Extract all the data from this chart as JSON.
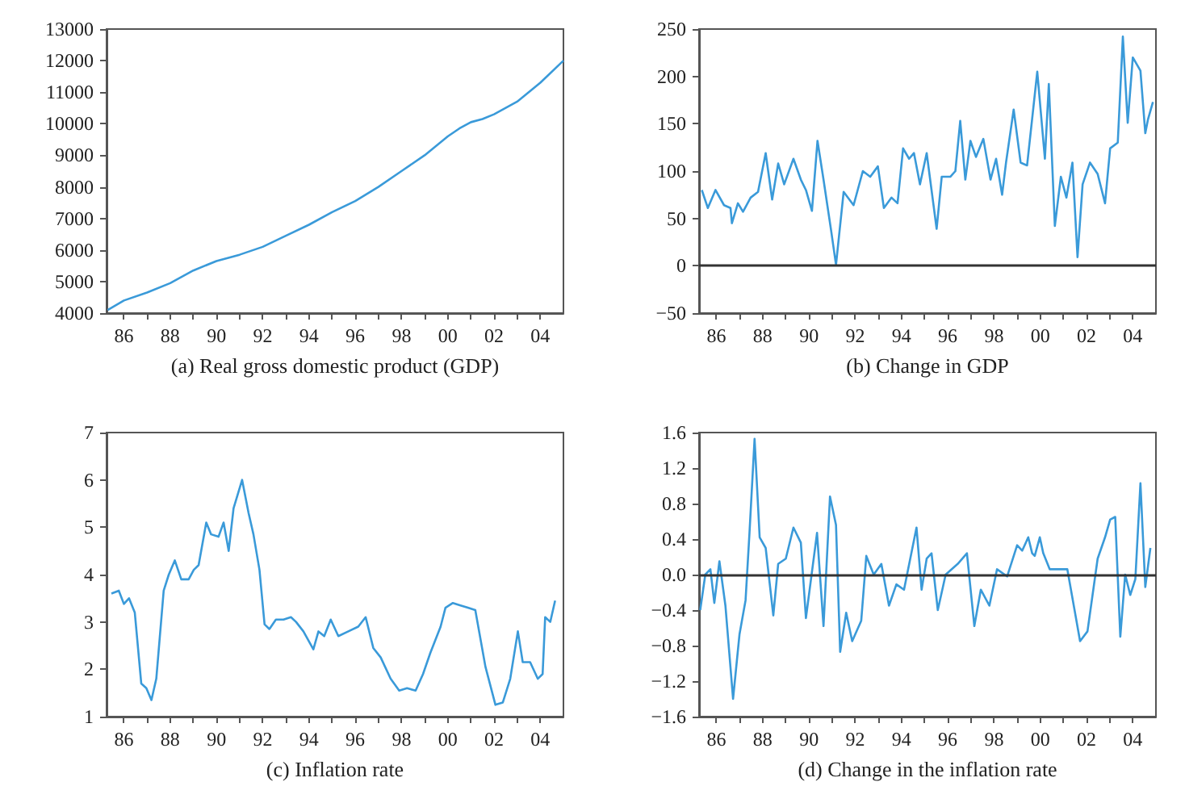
{
  "chart_data": [
    {
      "type": "line",
      "xlabel": "(a) Real gross domestic product (GDP)",
      "xlim": [
        1985.25,
        2005
      ],
      "ylim": [
        4000,
        13000
      ],
      "yticks": [
        4000,
        5000,
        6000,
        7000,
        8000,
        9000,
        10000,
        11000,
        12000,
        13000
      ],
      "xticks": [
        {
          "value": 1986,
          "label": "86"
        },
        {
          "value": 1987,
          "label": null
        },
        {
          "value": 1988,
          "label": "88"
        },
        {
          "value": 1989,
          "label": null
        },
        {
          "value": 1990,
          "label": "90"
        },
        {
          "value": 1991,
          "label": null
        },
        {
          "value": 1992,
          "label": "92"
        },
        {
          "value": 1993,
          "label": null
        },
        {
          "value": 1994,
          "label": "94"
        },
        {
          "value": 1995,
          "label": null
        },
        {
          "value": 1996,
          "label": "96"
        },
        {
          "value": 1997,
          "label": null
        },
        {
          "value": 1998,
          "label": "98"
        },
        {
          "value": 1999,
          "label": null
        },
        {
          "value": 2000,
          "label": "00"
        },
        {
          "value": 2001,
          "label": null
        },
        {
          "value": 2002,
          "label": "02"
        },
        {
          "value": 2003,
          "label": null
        },
        {
          "value": 2004,
          "label": "04"
        }
      ],
      "grid": false,
      "marker": "none",
      "series": [
        {
          "color": "#3a9ad9",
          "x": [
            1985.3,
            1986,
            1987,
            1988,
            1989,
            1990,
            1991,
            1992,
            1993,
            1994,
            1995,
            1996,
            1997,
            1998,
            1999,
            2000,
            2000.5,
            2001,
            2001.5,
            2002,
            2003,
            2004,
            2005
          ],
          "values": [
            4100,
            4400,
            4650,
            4950,
            5350,
            5650,
            5850,
            6100,
            6450,
            6800,
            7200,
            7550,
            8000,
            8500,
            9000,
            9600,
            9850,
            10050,
            10150,
            10300,
            10700,
            11300,
            12000
          ]
        }
      ]
    },
    {
      "type": "line",
      "xlabel": "(b) Change in GDP",
      "xlim": [
        1985.25,
        2005
      ],
      "ylim": [
        -50,
        250
      ],
      "yticks": [
        {
          "value": -50,
          "label": "−50"
        },
        0,
        50,
        100,
        150,
        200,
        250
      ],
      "xticks": [
        {
          "value": 1986,
          "label": "86"
        },
        {
          "value": 1987,
          "label": null
        },
        {
          "value": 1988,
          "label": "88"
        },
        {
          "value": 1989,
          "label": null
        },
        {
          "value": 1990,
          "label": "90"
        },
        {
          "value": 1991,
          "label": null
        },
        {
          "value": 1992,
          "label": "92"
        },
        {
          "value": 1993,
          "label": null
        },
        {
          "value": 1994,
          "label": "94"
        },
        {
          "value": 1995,
          "label": null
        },
        {
          "value": 1996,
          "label": "96"
        },
        {
          "value": 1997,
          "label": null
        },
        {
          "value": 1998,
          "label": "98"
        },
        {
          "value": 1999,
          "label": null
        },
        {
          "value": 2000,
          "label": "00"
        },
        {
          "value": 2001,
          "label": null
        },
        {
          "value": 2002,
          "label": "02"
        },
        {
          "value": 2003,
          "label": null
        },
        {
          "value": 2004,
          "label": "04"
        }
      ],
      "grid": false,
      "marker": "none",
      "ref_lines": [
        {
          "axis": "y",
          "value": 0,
          "color": "#333333"
        }
      ],
      "series": [
        {
          "color": "#3a9ad9",
          "x": [
            1985.37,
            1985.63,
            1985.96,
            1986.33,
            1986.61,
            1986.67,
            1986.93,
            1987.15,
            1987.48,
            1987.8,
            1988.13,
            1988.41,
            1988.67,
            1988.93,
            1989.33,
            1989.65,
            1989.87,
            1990.13,
            1990.37,
            1990.63,
            1990.96,
            1991.17,
            1991.5,
            1991.93,
            1992.33,
            1992.65,
            1992.98,
            1993.24,
            1993.57,
            1993.83,
            1994.07,
            1994.33,
            1994.54,
            1994.8,
            1995.09,
            1995.52,
            1995.74,
            1996.11,
            1996.33,
            1996.54,
            1996.76,
            1996.98,
            1997.22,
            1997.54,
            1997.85,
            1998.09,
            1998.35,
            1998.52,
            1998.85,
            1999.15,
            1999.43,
            1999.87,
            2000.2,
            2000.37,
            2000.63,
            2000.89,
            2001.13,
            2001.39,
            2001.61,
            2001.83,
            2002.15,
            2002.48,
            2002.8,
            2003.02,
            2003.35,
            2003.57,
            2003.78,
            2004,
            2004.33,
            2004.54,
            2004.65,
            2004.87
          ],
          "values": [
            80,
            61,
            80,
            64,
            61,
            45,
            66,
            57,
            72,
            78,
            119,
            70,
            108,
            86,
            113,
            91,
            80,
            58,
            132,
            91,
            37,
            1,
            78,
            64,
            100,
            94,
            105,
            61,
            72,
            66,
            124,
            113,
            119,
            86,
            119,
            39,
            94,
            94,
            100,
            153,
            91,
            132,
            115,
            134,
            91,
            113,
            75,
            109,
            165,
            109,
            106,
            205,
            113,
            192,
            42,
            94,
            72,
            109,
            9,
            86,
            109,
            97,
            66,
            124,
            130,
            242,
            151,
            220,
            206,
            140,
            154,
            173
          ]
        }
      ]
    },
    {
      "type": "line",
      "xlabel": "(c) Inflation rate",
      "xlim": [
        1985.25,
        2005
      ],
      "ylim": [
        1,
        7
      ],
      "yticks": [
        1,
        2,
        3,
        4,
        5,
        6,
        7
      ],
      "xticks": [
        {
          "value": 1986,
          "label": "86"
        },
        {
          "value": 1987,
          "label": null
        },
        {
          "value": 1988,
          "label": "88"
        },
        {
          "value": 1989,
          "label": null
        },
        {
          "value": 1990,
          "label": "90"
        },
        {
          "value": 1991,
          "label": null
        },
        {
          "value": 1992,
          "label": "92"
        },
        {
          "value": 1993,
          "label": null
        },
        {
          "value": 1994,
          "label": "94"
        },
        {
          "value": 1995,
          "label": null
        },
        {
          "value": 1996,
          "label": "96"
        },
        {
          "value": 1997,
          "label": null
        },
        {
          "value": 1998,
          "label": "98"
        },
        {
          "value": 1999,
          "label": null
        },
        {
          "value": 2000,
          "label": "00"
        },
        {
          "value": 2001,
          "label": null
        },
        {
          "value": 2002,
          "label": "02"
        },
        {
          "value": 2003,
          "label": null
        },
        {
          "value": 2004,
          "label": "04"
        }
      ],
      "grid": false,
      "marker": "none",
      "series": [
        {
          "color": "#3a9ad9",
          "x": [
            1985.46,
            1985.78,
            1986,
            1986.22,
            1986.47,
            1986.75,
            1986.97,
            1987.19,
            1987.4,
            1987.72,
            1987.94,
            1988.2,
            1988.48,
            1988.8,
            1989.02,
            1989.23,
            1989.56,
            1989.77,
            1990.09,
            1990.31,
            1990.53,
            1990.74,
            1991.11,
            1991.39,
            1991.6,
            1991.86,
            1992.08,
            1992.29,
            1992.57,
            1992.9,
            1993.22,
            1993.44,
            1993.76,
            1994.19,
            1994.41,
            1994.66,
            1994.94,
            1995.27,
            1995.7,
            1996.13,
            1996.45,
            1996.78,
            1997.1,
            1997.53,
            1997.9,
            1998.24,
            1998.61,
            1998.93,
            1999.25,
            1999.69,
            1999.9,
            2000.22,
            2000.55,
            2000.87,
            2001.19,
            2001.63,
            2002.06,
            2002.38,
            2002.7,
            2003.03,
            2003.24,
            2003.56,
            2003.89,
            2004.1,
            2004.21,
            2004.43,
            2004.64
          ],
          "values": [
            3.6,
            3.66,
            3.38,
            3.5,
            3.2,
            1.7,
            1.6,
            1.35,
            1.8,
            3.66,
            4.0,
            4.3,
            3.9,
            3.9,
            4.1,
            4.2,
            5.1,
            4.85,
            4.8,
            5.1,
            4.5,
            5.4,
            6.0,
            5.3,
            4.85,
            4.1,
            2.95,
            2.85,
            3.05,
            3.05,
            3.1,
            3.0,
            2.8,
            2.42,
            2.8,
            2.7,
            3.05,
            2.7,
            2.8,
            2.9,
            3.1,
            2.45,
            2.25,
            1.8,
            1.55,
            1.6,
            1.55,
            1.9,
            2.35,
            2.9,
            3.3,
            3.4,
            3.35,
            3.3,
            3.25,
            2.05,
            1.25,
            1.3,
            1.8,
            2.8,
            2.15,
            2.15,
            1.8,
            1.9,
            3.1,
            3.0,
            3.45
          ]
        }
      ]
    },
    {
      "type": "line",
      "xlabel": "(d) Change in the inflation rate",
      "xlim": [
        1985.25,
        2005
      ],
      "ylim": [
        -1.6,
        1.6
      ],
      "yticks": [
        {
          "value": -1.6,
          "label": "−1.6"
        },
        {
          "value": -1.2,
          "label": "−1.2"
        },
        {
          "value": -0.8,
          "label": "−0.8"
        },
        {
          "value": -0.4,
          "label": "−0.4"
        },
        {
          "value": 0,
          "label": "0.0"
        },
        0.4,
        0.8,
        1.2,
        1.6
      ],
      "xticks": [
        {
          "value": 1986,
          "label": "86"
        },
        {
          "value": 1987,
          "label": null
        },
        {
          "value": 1988,
          "label": "88"
        },
        {
          "value": 1989,
          "label": null
        },
        {
          "value": 1990,
          "label": "90"
        },
        {
          "value": 1991,
          "label": null
        },
        {
          "value": 1992,
          "label": "92"
        },
        {
          "value": 1993,
          "label": null
        },
        {
          "value": 1994,
          "label": "94"
        },
        {
          "value": 1995,
          "label": null
        },
        {
          "value": 1996,
          "label": "96"
        },
        {
          "value": 1997,
          "label": null
        },
        {
          "value": 1998,
          "label": "98"
        },
        {
          "value": 1999,
          "label": null
        },
        {
          "value": 2000,
          "label": "00"
        },
        {
          "value": 2001,
          "label": null
        },
        {
          "value": 2002,
          "label": "02"
        },
        {
          "value": 2003,
          "label": null
        },
        {
          "value": 2004,
          "label": "04"
        }
      ],
      "grid": false,
      "marker": "none",
      "ref_lines": [
        {
          "axis": "y",
          "value": 0,
          "color": "#333333"
        }
      ],
      "series": [
        {
          "color": "#3a9ad9",
          "x": [
            1985.3,
            1985.52,
            1985.74,
            1985.91,
            1986.13,
            1986.39,
            1986.72,
            1987,
            1987.26,
            1987.43,
            1987.65,
            1987.87,
            1988.13,
            1988.46,
            1988.67,
            1989,
            1989.33,
            1989.65,
            1989.87,
            1990.35,
            1990.63,
            1990.91,
            1991.17,
            1991.35,
            1991.61,
            1991.87,
            1992.26,
            1992.48,
            1992.8,
            1993.13,
            1993.46,
            1993.78,
            1994.11,
            1994.65,
            1994.87,
            1995.09,
            1995.3,
            1995.57,
            1995.91,
            1996.43,
            1996.83,
            1997.15,
            1997.43,
            1997.8,
            1998.13,
            1998.57,
            1999,
            1999.22,
            1999.48,
            1999.65,
            1999.76,
            1999.98,
            2000.13,
            2000.41,
            2000.74,
            2001.17,
            2001.72,
            2002.04,
            2002.48,
            2002.8,
            2003.02,
            2003.24,
            2003.46,
            2003.67,
            2003.89,
            2004.11,
            2004.33,
            2004.54,
            2004.76
          ],
          "values": [
            -0.4,
            0,
            0.06,
            -0.32,
            0.15,
            -0.35,
            -1.4,
            -0.67,
            -0.29,
            0.47,
            1.53,
            0.42,
            0.3,
            -0.46,
            0.12,
            0.18,
            0.53,
            0.36,
            -0.49,
            0.47,
            -0.58,
            0.88,
            0.56,
            -0.87,
            -0.43,
            -0.75,
            -0.52,
            0.21,
            0,
            0.12,
            -0.35,
            -0.11,
            -0.17,
            0.53,
            -0.17,
            0.18,
            0.24,
            -0.4,
            0,
            0.12,
            0.24,
            -0.58,
            -0.17,
            -0.35,
            0.06,
            -0.02,
            0.33,
            0.27,
            0.42,
            0.24,
            0.21,
            0.42,
            0.24,
            0.06,
            0.06,
            0.06,
            -0.75,
            -0.64,
            0.18,
            0.42,
            0.62,
            0.65,
            -0.7,
            0,
            -0.23,
            -0.05,
            1.03,
            -0.14,
            0.3
          ]
        }
      ]
    }
  ]
}
